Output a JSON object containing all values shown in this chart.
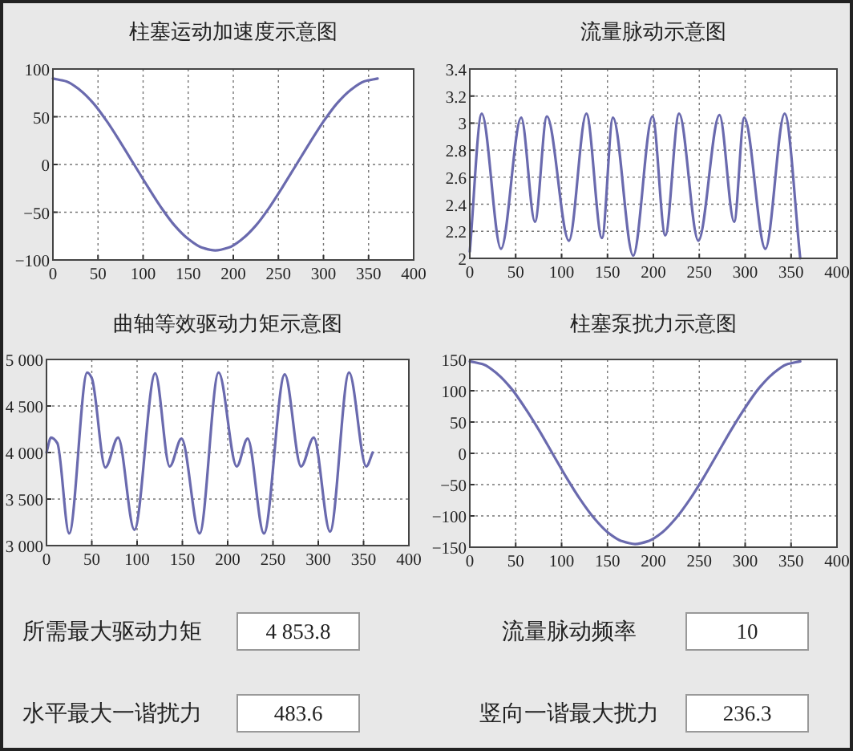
{
  "chart_data": [
    {
      "type": "line",
      "title": "柱塞运动加速度示意图",
      "grid": true,
      "xlim": [
        0,
        400
      ],
      "xticks": [
        0,
        50,
        100,
        150,
        200,
        250,
        300,
        350,
        400
      ],
      "ylim": [
        -100,
        100
      ],
      "yticks": [
        -100,
        -50,
        0,
        50,
        100
      ],
      "series": [
        {
          "color": "#6a6aae",
          "x": [
            0,
            15,
            30,
            45,
            60,
            75,
            90,
            105,
            120,
            135,
            150,
            165,
            180,
            195,
            210,
            225,
            240,
            255,
            270,
            285,
            300,
            315,
            330,
            345,
            360
          ],
          "values": [
            90,
            87,
            78,
            64,
            45,
            23,
            0,
            -23,
            -45,
            -64,
            -78,
            -87,
            -90,
            -87,
            -78,
            -64,
            -45,
            -23,
            0,
            23,
            45,
            64,
            78,
            87,
            90
          ]
        }
      ]
    },
    {
      "type": "line",
      "title": "流量脉动示意图",
      "grid": true,
      "xlim": [
        0,
        400
      ],
      "xticks": [
        0,
        50,
        100,
        150,
        200,
        250,
        300,
        350,
        400
      ],
      "ylim": [
        2,
        3.4
      ],
      "yticks": [
        2,
        2.2,
        2.4,
        2.6,
        2.8,
        3,
        3.2,
        3.4
      ],
      "series": [
        {
          "color": "#6a6aae",
          "x": [
            0,
            13,
            34,
            56,
            71,
            84,
            108,
            127,
            144,
            156,
            178,
            199,
            213,
            228,
            249,
            272,
            288,
            299,
            322,
            343,
            360
          ],
          "values": [
            2.05,
            3.07,
            2.07,
            3.04,
            2.27,
            3.05,
            2.13,
            3.07,
            2.15,
            3.04,
            2.02,
            3.05,
            2.17,
            3.07,
            2.13,
            3.06,
            2.27,
            3.04,
            2.07,
            3.07,
            2.0
          ]
        }
      ]
    },
    {
      "type": "line",
      "title": "曲轴等效驱动力矩示意图",
      "grid": true,
      "xlim": [
        0,
        400
      ],
      "xticks": [
        0,
        50,
        100,
        150,
        200,
        250,
        300,
        350,
        400
      ],
      "ylim": [
        3000,
        5000
      ],
      "yticks": [
        {
          "value": 3000,
          "label": "3 000"
        },
        {
          "value": 3500,
          "label": "3 500"
        },
        {
          "value": 4000,
          "label": "4 000"
        },
        {
          "value": 4500,
          "label": "4 500"
        },
        {
          "value": 5000,
          "label": "5 000"
        }
      ],
      "series": [
        {
          "color": "#6a6aae",
          "x": [
            0,
            5,
            12,
            25,
            45,
            50,
            65,
            79,
            97,
            120,
            136,
            149,
            169,
            190,
            210,
            222,
            240,
            263,
            281,
            295,
            313,
            334,
            353,
            360
          ],
          "values": [
            4000,
            4160,
            4100,
            3130,
            4860,
            4800,
            3840,
            4160,
            3170,
            4850,
            3850,
            4150,
            3130,
            4860,
            3850,
            4150,
            3130,
            4840,
            3850,
            4160,
            3150,
            4860,
            3850,
            4000
          ]
        }
      ]
    },
    {
      "type": "line",
      "title": "柱塞泵扰力示意图",
      "grid": true,
      "xlim": [
        0,
        400
      ],
      "xticks": [
        0,
        50,
        100,
        150,
        200,
        250,
        300,
        350,
        400
      ],
      "ylim": [
        -150,
        150
      ],
      "yticks": [
        -150,
        -100,
        -50,
        0,
        50,
        100,
        150
      ],
      "series": [
        {
          "color": "#6a6aae",
          "x": [
            0,
            15,
            30,
            45,
            60,
            75,
            90,
            105,
            120,
            135,
            150,
            165,
            180,
            195,
            210,
            225,
            240,
            255,
            270,
            285,
            300,
            315,
            330,
            345,
            360
          ],
          "values": [
            147,
            142,
            127,
            104,
            73,
            38,
            0,
            -38,
            -73,
            -103,
            -126,
            -140,
            -145,
            -140,
            -126,
            -103,
            -73,
            -38,
            0,
            38,
            73,
            104,
            127,
            142,
            147
          ]
        }
      ]
    },
    {
      "type": "other",
      "annotations": [
        "所需最大驱动力矩",
        "4 853.8",
        "流量脉动频率",
        "10",
        "水平最大一谐扰力",
        "483.6",
        "竖向一谐最大扰力",
        "236.3"
      ]
    }
  ]
}
